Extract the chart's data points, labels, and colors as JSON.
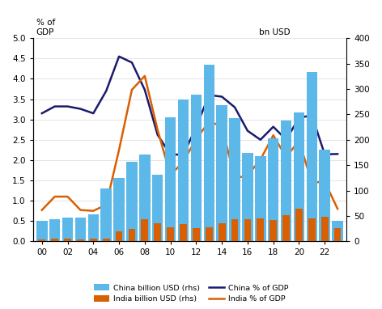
{
  "years": [
    2000,
    2001,
    2002,
    2003,
    2004,
    2005,
    2006,
    2007,
    2008,
    2009,
    2010,
    2011,
    2012,
    2013,
    2014,
    2015,
    2016,
    2017,
    2018,
    2019,
    2020,
    2021,
    2022,
    2023
  ],
  "china_bn": [
    40,
    44,
    47,
    47,
    53,
    104,
    124,
    156,
    171,
    131,
    244,
    280,
    288,
    347,
    268,
    242,
    174,
    168,
    203,
    238,
    253,
    334,
    180,
    40
  ],
  "india_bn": [
    3,
    5,
    5,
    4,
    5,
    6,
    20,
    25,
    43,
    35,
    27,
    34,
    26,
    28,
    35,
    44,
    44,
    45,
    42,
    51,
    64,
    45,
    49,
    26
  ],
  "china_pct": [
    3.15,
    3.32,
    3.32,
    3.26,
    3.15,
    3.7,
    4.55,
    4.4,
    3.73,
    2.62,
    2.14,
    2.13,
    2.81,
    3.6,
    3.56,
    3.3,
    2.72,
    2.5,
    2.82,
    2.5,
    3.04,
    3.1,
    2.14,
    2.15
  ],
  "india_pct": [
    0.77,
    1.1,
    1.1,
    0.77,
    0.75,
    0.9,
    2.25,
    3.73,
    4.07,
    2.74,
    1.63,
    1.96,
    2.52,
    2.94,
    2.84,
    1.55,
    1.62,
    2.01,
    2.61,
    2.07,
    2.48,
    1.44,
    1.47,
    0.8
  ],
  "china_bar_color": "#5BB8E8",
  "india_bar_color": "#D95F02",
  "china_line_color": "#1A1A6E",
  "india_line_color": "#D95F02",
  "ylim_left": [
    0,
    5
  ],
  "ylim_right": [
    0,
    400
  ],
  "yticks_left": [
    0,
    0.5,
    1.0,
    1.5,
    2.0,
    2.5,
    3.0,
    3.5,
    4.0,
    4.5,
    5.0
  ],
  "yticks_right": [
    0,
    50,
    100,
    150,
    200,
    250,
    300,
    350,
    400
  ],
  "legend_labels": [
    "China billion USD (rhs)",
    "India billion USD (rhs)",
    "China % of GDP",
    "India % of GDP"
  ]
}
